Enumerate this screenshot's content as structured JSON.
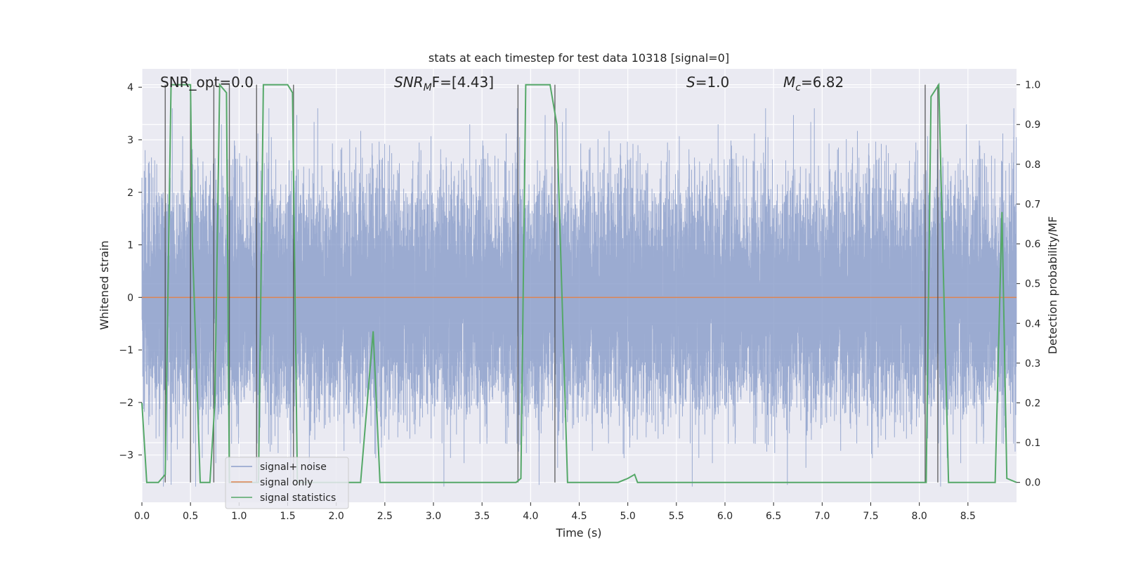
{
  "chart_data": {
    "type": "line",
    "title": "stats at each timestep for test data 10318 [signal=0]",
    "xlabel": "Time (s)",
    "ylabel": "Whitened strain",
    "ylabel_right": "Detection probability/MF",
    "xlim": [
      0.0,
      9.0
    ],
    "ylim": [
      -3.9,
      4.35
    ],
    "ylim_right": [
      -0.05,
      1.04
    ],
    "x_ticks": [
      0.0,
      0.5,
      1.0,
      1.5,
      2.0,
      2.5,
      3.0,
      3.5,
      4.0,
      4.5,
      5.0,
      5.5,
      6.0,
      6.5,
      7.0,
      7.5,
      8.0,
      8.5
    ],
    "x_tick_labels": [
      "0.0",
      "0.5",
      "1.0",
      "1.5",
      "2.0",
      "2.5",
      "3.0",
      "3.5",
      "4.0",
      "4.5",
      "5.0",
      "5.5",
      "6.0",
      "6.5",
      "7.0",
      "7.5",
      "8.0",
      "8.5"
    ],
    "y_ticks": [
      4,
      3,
      2,
      1,
      0,
      -1,
      -2,
      -3
    ],
    "y_tick_labels": [
      "4",
      "3",
      "2",
      "1",
      "0",
      "−1",
      "−2",
      "−3"
    ],
    "y_right_ticks": [
      1.0,
      0.9,
      0.8,
      0.7,
      0.6,
      0.5,
      0.4,
      0.3,
      0.2,
      0.1,
      0.0
    ],
    "y_right_tick_labels": [
      "1.0",
      "0.9",
      "0.8",
      "0.7",
      "0.6",
      "0.5",
      "0.4",
      "0.3",
      "0.2",
      "0.1",
      "0.0"
    ],
    "annotations": {
      "snr_opt": "SNR_opt=0.0",
      "snr_mf_sym": "SNR",
      "snr_mf_sub": "M",
      "snr_mf_rest": "F=[4.43]",
      "s_sym": "S",
      "s_rest": "=1.0",
      "mc_sym": "M",
      "mc_sub": "c",
      "mc_rest": "=6.82"
    },
    "legend_position": "lower-left",
    "series": [
      {
        "name": "signal+ noise",
        "color": "#8da0cb",
        "kind": "noise",
        "sample_rate_hz": 2048,
        "peak_abs": 3.6
      },
      {
        "name": "signal only",
        "color": "#dd8452",
        "kind": "constant",
        "value": 0.0
      },
      {
        "name": "signal statistics",
        "color": "#55a868",
        "axis": "right",
        "x": [
          0.0,
          0.05,
          0.17,
          0.24,
          0.3,
          0.5,
          0.52,
          0.6,
          0.7,
          0.75,
          0.8,
          0.87,
          0.9,
          1.1,
          1.2,
          1.25,
          1.5,
          1.55,
          1.6,
          1.8,
          2.0,
          2.25,
          2.38,
          2.45,
          2.5,
          3.0,
          3.5,
          3.85,
          3.9,
          3.95,
          4.2,
          4.27,
          4.38,
          4.9,
          5.0,
          5.07,
          5.1,
          5.5,
          6.0,
          7.0,
          8.07,
          8.12,
          8.2,
          8.3,
          8.7,
          8.78,
          8.85,
          8.9,
          9.0
        ],
        "values": [
          0.2,
          0.0,
          0.0,
          0.02,
          1.0,
          1.0,
          0.6,
          0.0,
          0.0,
          0.2,
          1.0,
          0.98,
          0.0,
          0.0,
          0.0,
          1.0,
          1.0,
          0.98,
          0.0,
          0.0,
          0.0,
          0.0,
          0.38,
          0.0,
          0.0,
          0.0,
          0.0,
          0.0,
          0.01,
          1.0,
          1.0,
          0.9,
          0.0,
          0.0,
          0.01,
          0.02,
          0.0,
          0.0,
          0.0,
          0.0,
          0.0,
          0.97,
          1.0,
          0.0,
          0.0,
          0.0,
          0.68,
          0.01,
          0.0
        ]
      }
    ],
    "vlines_x": [
      0.24,
      0.5,
      0.74,
      0.9,
      1.18,
      1.56,
      3.87,
      4.25,
      8.06,
      8.19
    ]
  }
}
